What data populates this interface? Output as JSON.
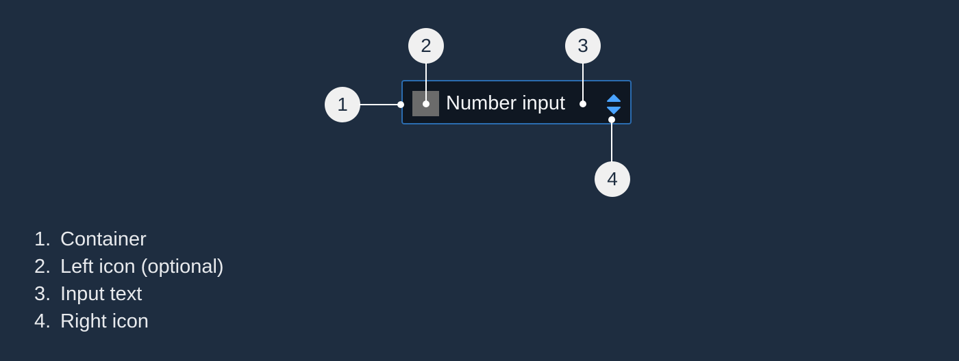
{
  "component": {
    "input_text": "Number input",
    "border_color": "#2b6cb0",
    "background_color": "#0f1722",
    "left_icon": "placeholder-square-icon",
    "right_icon": "up-down-stepper-icon",
    "accent_color": "#4aa3ff"
  },
  "callouts": {
    "c1": "1",
    "c2": "2",
    "c3": "3",
    "c4": "4"
  },
  "legend": [
    {
      "num": "1.",
      "label": "Container"
    },
    {
      "num": "2.",
      "label": "Left icon (optional)"
    },
    {
      "num": "3.",
      "label": "Input text"
    },
    {
      "num": "4.",
      "label": "Right icon"
    }
  ]
}
